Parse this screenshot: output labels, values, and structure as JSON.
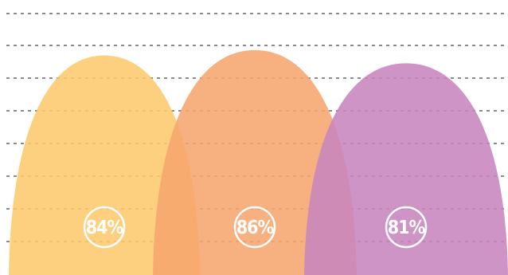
{
  "chart_data": {
    "type": "area",
    "title": "",
    "grid": true,
    "ylim": [
      0,
      100
    ],
    "categories": [
      "",
      "",
      ""
    ],
    "values": [
      84,
      86,
      81
    ],
    "labels": [
      "84%",
      "86%",
      "81%"
    ],
    "colors": [
      "#fdc96d",
      "#f6a56d",
      "#c785be"
    ]
  }
}
